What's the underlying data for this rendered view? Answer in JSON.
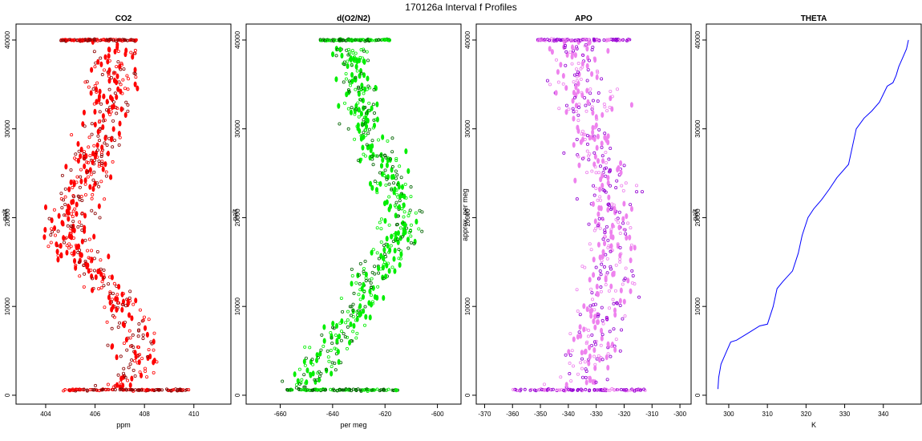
{
  "figure_title": "170126a   Interval f Profiles",
  "chart_data": [
    {
      "type": "scatter",
      "title": "CO2",
      "xlabel": "ppm",
      "ylabel": "palt",
      "xlim": [
        402.8,
        411.5
      ],
      "ylim": [
        -1000,
        41800
      ],
      "xticks": [
        404,
        406,
        408,
        410
      ],
      "yticks": [
        0,
        10000,
        20000,
        30000,
        40000
      ],
      "colors": {
        "light": "#ff0000",
        "dark": "#8b0000"
      },
      "profile": [
        [
          406.4,
          500
        ],
        [
          408.0,
          3000
        ],
        [
          407.4,
          8000
        ],
        [
          406.3,
          13000
        ],
        [
          405.5,
          15000
        ],
        [
          404.8,
          18000
        ],
        [
          405.3,
          22000
        ],
        [
          405.7,
          26000
        ],
        [
          406.4,
          30000
        ],
        [
          406.8,
          35000
        ],
        [
          407.0,
          40000
        ]
      ],
      "spread": 0.9,
      "n": 520,
      "surface_band": {
        "y": 600,
        "x_range": [
          404.7,
          409.8
        ]
      },
      "top_band": {
        "y": 40000,
        "x_range": [
          404.6,
          407.7
        ]
      }
    },
    {
      "type": "scatter",
      "title": "d(O2/N2)",
      "xlabel": "per meg",
      "ylabel": "palt",
      "xlim": [
        -673,
        -591
      ],
      "ylim": [
        -1000,
        41800
      ],
      "xticks": [
        -660,
        -640,
        -620,
        -600
      ],
      "yticks": [
        0,
        10000,
        20000,
        30000,
        40000
      ],
      "colors": {
        "light": "#00ee00",
        "dark": "#006400"
      },
      "profile": [
        [
          -652,
          1000
        ],
        [
          -643,
          4000
        ],
        [
          -634,
          8000
        ],
        [
          -627,
          12000
        ],
        [
          -620,
          15000
        ],
        [
          -612,
          18000
        ],
        [
          -615,
          22000
        ],
        [
          -620,
          26000
        ],
        [
          -628,
          30000
        ],
        [
          -631,
          35000
        ],
        [
          -634,
          40000
        ]
      ],
      "spread": 7.5,
      "n": 520,
      "surface_band": {
        "y": 600,
        "x_range": [
          -658,
          -615
        ]
      },
      "top_band": {
        "y": 40000,
        "x_range": [
          -645,
          -618
        ]
      }
    },
    {
      "type": "scatter",
      "title": "APO",
      "xlabel": "",
      "ylabel": "approx. per meg",
      "xlim": [
        -373,
        -296
      ],
      "ylim": [
        -1000,
        41800
      ],
      "xticks": [
        -370,
        -360,
        -350,
        -340,
        -330,
        -320,
        -310,
        -300
      ],
      "yticks": [
        0,
        10000,
        20000,
        30000,
        40000
      ],
      "colors": {
        "light": "#ee82ee",
        "dark": "#9400d3"
      },
      "profile": [
        [
          -335,
          1000
        ],
        [
          -330,
          5000
        ],
        [
          -327,
          10000
        ],
        [
          -325,
          15000
        ],
        [
          -324,
          20000
        ],
        [
          -326,
          25000
        ],
        [
          -332,
          30000
        ],
        [
          -335,
          35000
        ],
        [
          -337,
          40000
        ]
      ],
      "spread": 9,
      "n": 480,
      "surface_band": {
        "y": 600,
        "x_range": [
          -360,
          -312
        ]
      },
      "top_band": {
        "y": 40000,
        "x_range": [
          -351,
          -318
        ]
      }
    },
    {
      "type": "line",
      "title": "THETA",
      "xlabel": "K",
      "ylabel": "palt",
      "xlim": [
        294.2,
        349.8
      ],
      "ylim": [
        -1000,
        41800
      ],
      "xticks": [
        300,
        310,
        320,
        330,
        340
      ],
      "yticks": [
        0,
        10000,
        20000,
        30000,
        40000
      ],
      "colors": {
        "line": "#0000ff"
      },
      "points": [
        [
          297.2,
          700
        ],
        [
          297.4,
          2000
        ],
        [
          298.0,
          3500
        ],
        [
          299.5,
          5000
        ],
        [
          300.5,
          6000
        ],
        [
          302.0,
          6200
        ],
        [
          305.0,
          7000
        ],
        [
          308.0,
          7800
        ],
        [
          310.0,
          8000
        ],
        [
          311.5,
          10000
        ],
        [
          312.5,
          12000
        ],
        [
          314.0,
          12800
        ],
        [
          316.5,
          14000
        ],
        [
          318.0,
          16000
        ],
        [
          319.0,
          18000
        ],
        [
          320.5,
          20000
        ],
        [
          322.0,
          21000
        ],
        [
          324.0,
          22000
        ],
        [
          326.0,
          23200
        ],
        [
          328.0,
          24500
        ],
        [
          331.0,
          26000
        ],
        [
          332.0,
          28000
        ],
        [
          333.0,
          30000
        ],
        [
          335.0,
          31200
        ],
        [
          337.0,
          32000
        ],
        [
          339.0,
          33000
        ],
        [
          341.0,
          34800
        ],
        [
          342.5,
          35200
        ],
        [
          343.3,
          36000
        ],
        [
          344.0,
          37000
        ],
        [
          345.0,
          38000
        ],
        [
          346.0,
          39000
        ],
        [
          346.5,
          40000
        ]
      ]
    }
  ]
}
